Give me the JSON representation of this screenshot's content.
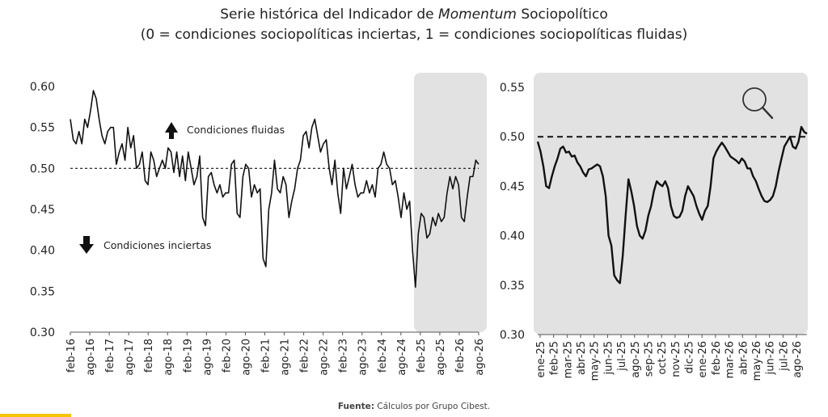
{
  "title": {
    "line1_prefix": "Serie histórica del Indicador de ",
    "line1_em": "Momentum",
    "line1_suffix": " Sociopolítico",
    "line2": "(0 = condiciones sociopolíticas inciertas, 1 = condiciones sociopolíticas fluidas)"
  },
  "source": {
    "label": "Fuente:",
    "text": " Cálculos por Grupo Cibest."
  },
  "colors": {
    "line": "#111111",
    "highlight": "#e2e2e2",
    "accent": "#f6c400"
  },
  "icons": {
    "zoom": "magnifier-icon",
    "up": "arrow-up-icon",
    "down": "arrow-down-icon"
  },
  "chart_data": [
    {
      "type": "line",
      "threshold": 0.5,
      "ylim": [
        0.3,
        0.6
      ],
      "yticks": [
        "0.30",
        "0.35",
        "0.40",
        "0.45",
        "0.50",
        "0.55",
        "0.60"
      ],
      "xticks": [
        "feb-16",
        "ago-16",
        "feb-17",
        "ago-17",
        "feb-18",
        "ago-18",
        "feb-19",
        "ago-19",
        "feb-20",
        "ago-20",
        "feb-21",
        "ago-21",
        "feb-22",
        "ago-22",
        "feb-23",
        "ago-23",
        "feb-24",
        "ago-24",
        "feb-25",
        "ago-25",
        "feb-26",
        "ago-26"
      ],
      "highlight_range": [
        "dic-24",
        "sep-26"
      ],
      "annotations": [
        "Condiciones fluidas",
        "Condiciones inciertas"
      ],
      "series": [
        {
          "values": [
            0.56,
            0.535,
            0.53,
            0.545,
            0.53,
            0.56,
            0.55,
            0.57,
            0.595,
            0.585,
            0.56,
            0.54,
            0.53,
            0.545,
            0.55,
            0.55,
            0.505,
            0.52,
            0.53,
            0.51,
            0.55,
            0.525,
            0.54,
            0.5,
            0.505,
            0.52,
            0.485,
            0.48,
            0.52,
            0.51,
            0.49,
            0.5,
            0.51,
            0.5,
            0.525,
            0.52,
            0.495,
            0.52,
            0.49,
            0.515,
            0.485,
            0.52,
            0.5,
            0.48,
            0.49,
            0.515,
            0.44,
            0.43,
            0.49,
            0.495,
            0.48,
            0.47,
            0.48,
            0.465,
            0.47,
            0.47,
            0.505,
            0.51,
            0.445,
            0.44,
            0.49,
            0.505,
            0.5,
            0.465,
            0.48,
            0.47,
            0.475,
            0.39,
            0.38,
            0.45,
            0.47,
            0.51,
            0.475,
            0.47,
            0.49,
            0.48,
            0.44,
            0.46,
            0.475,
            0.5,
            0.51,
            0.54,
            0.545,
            0.525,
            0.55,
            0.56,
            0.54,
            0.52,
            0.53,
            0.535,
            0.5,
            0.48,
            0.51,
            0.47,
            0.445,
            0.5,
            0.475,
            0.49,
            0.505,
            0.48,
            0.465,
            0.47,
            0.47,
            0.485,
            0.47,
            0.48,
            0.465,
            0.5,
            0.505,
            0.52,
            0.505,
            0.5,
            0.48,
            0.485,
            0.465,
            0.44,
            0.47,
            0.45,
            0.46,
            0.4,
            0.355,
            0.42,
            0.445,
            0.44,
            0.415,
            0.42,
            0.44,
            0.43,
            0.445,
            0.435,
            0.44,
            0.47,
            0.49,
            0.475,
            0.49,
            0.48,
            0.44,
            0.435,
            0.465,
            0.49,
            0.49,
            0.51,
            0.505
          ]
        }
      ]
    },
    {
      "type": "line",
      "threshold": 0.5,
      "ylim": [
        0.3,
        0.55
      ],
      "yticks": [
        "0.30",
        "0.35",
        "0.40",
        "0.45",
        "0.50",
        "0.55"
      ],
      "xticks": [
        "ene-25",
        "feb-25",
        "mar-25",
        "abr-25",
        "may-25",
        "jun-25",
        "jul-25",
        "ago-25",
        "sep-25",
        "oct-25",
        "nov-25",
        "dic-25",
        "ene-26",
        "feb-26",
        "mar-26",
        "abr-26",
        "may-26",
        "jun-26",
        "jul-26",
        "ago-26"
      ],
      "series": [
        {
          "values": [
            0.495,
            0.485,
            0.47,
            0.45,
            0.448,
            0.46,
            0.47,
            0.478,
            0.488,
            0.49,
            0.484,
            0.485,
            0.48,
            0.481,
            0.474,
            0.47,
            0.464,
            0.46,
            0.467,
            0.468,
            0.47,
            0.472,
            0.47,
            0.46,
            0.44,
            0.4,
            0.39,
            0.36,
            0.355,
            0.352,
            0.38,
            0.42,
            0.457,
            0.445,
            0.43,
            0.41,
            0.4,
            0.397,
            0.405,
            0.42,
            0.43,
            0.445,
            0.455,
            0.452,
            0.45,
            0.455,
            0.448,
            0.43,
            0.42,
            0.418,
            0.419,
            0.425,
            0.44,
            0.45,
            0.445,
            0.44,
            0.43,
            0.422,
            0.416,
            0.425,
            0.43,
            0.45,
            0.478,
            0.485,
            0.49,
            0.494,
            0.49,
            0.485,
            0.48,
            0.478,
            0.476,
            0.473,
            0.478,
            0.475,
            0.468,
            0.468,
            0.46,
            0.455,
            0.447,
            0.44,
            0.435,
            0.434,
            0.436,
            0.44,
            0.45,
            0.465,
            0.478,
            0.49,
            0.495,
            0.5,
            0.49,
            0.488,
            0.495,
            0.51,
            0.505,
            0.503
          ]
        }
      ]
    }
  ]
}
